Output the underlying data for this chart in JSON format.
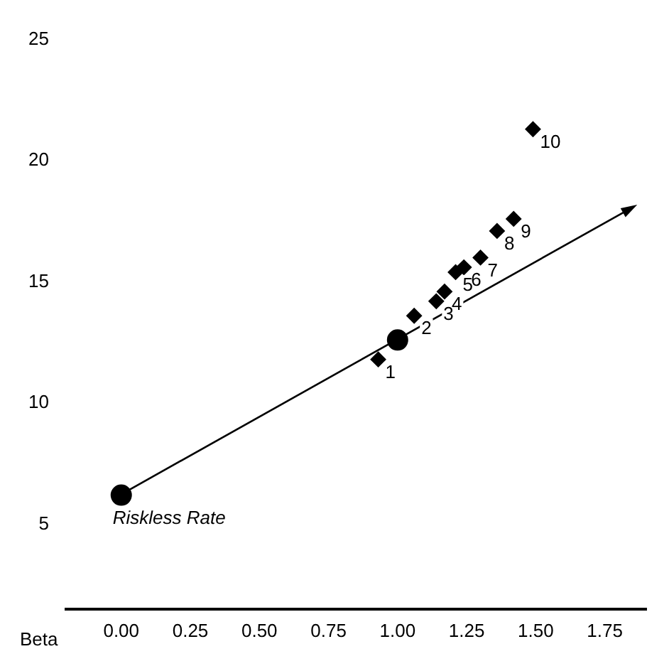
{
  "chart_data": {
    "type": "scatter",
    "xlabel": "Beta",
    "xlim": [
      -0.2,
      1.9
    ],
    "xticks": [
      {
        "value": 0,
        "label": "0.00"
      },
      {
        "value": 0.25,
        "label": "0.25"
      },
      {
        "value": 0.5,
        "label": "0.50"
      },
      {
        "value": 0.75,
        "label": "0.75"
      },
      {
        "value": 1,
        "label": "1.00"
      },
      {
        "value": 1.25,
        "label": "1.25"
      },
      {
        "value": 1.5,
        "label": "1.50"
      },
      {
        "value": 1.75,
        "label": "1.75"
      }
    ],
    "ylim": [
      1.5,
      25
    ],
    "yticks": [
      5,
      10,
      15,
      20,
      25
    ],
    "grid": false,
    "legend": false,
    "series": [
      {
        "type": "scatter",
        "color": "#000000",
        "marker": "circle",
        "x": [
          0,
          1.0
        ],
        "values": [
          6.2,
          12.6
        ]
      },
      {
        "type": "scatter",
        "color": "#000000",
        "marker": "diamond",
        "x": [
          0.93,
          1.06,
          1.14,
          1.17,
          1.21,
          1.24,
          1.3,
          1.36,
          1.42,
          1.49
        ],
        "values": [
          11.8,
          13.6,
          14.2,
          14.6,
          15.4,
          15.6,
          16.0,
          17.1,
          17.6,
          21.3
        ]
      }
    ],
    "annotations": [
      {
        "text": "Riskless Rate",
        "x": 0,
        "y": 6.2
      },
      {
        "text": "1",
        "x": 0.93,
        "y": 11.8
      },
      {
        "text": "2",
        "x": 1.06,
        "y": 13.6
      },
      {
        "text": "3",
        "x": 1.14,
        "y": 14.2
      },
      {
        "text": "4",
        "x": 1.17,
        "y": 14.6
      },
      {
        "text": "5",
        "x": 1.21,
        "y": 15.4
      },
      {
        "text": "6",
        "x": 1.24,
        "y": 15.6
      },
      {
        "text": "7",
        "x": 1.3,
        "y": 16.0
      },
      {
        "text": "8",
        "x": 1.36,
        "y": 17.1
      },
      {
        "text": "9",
        "x": 1.42,
        "y": 17.6
      },
      {
        "text": "10",
        "x": 1.49,
        "y": 21.3
      }
    ]
  }
}
